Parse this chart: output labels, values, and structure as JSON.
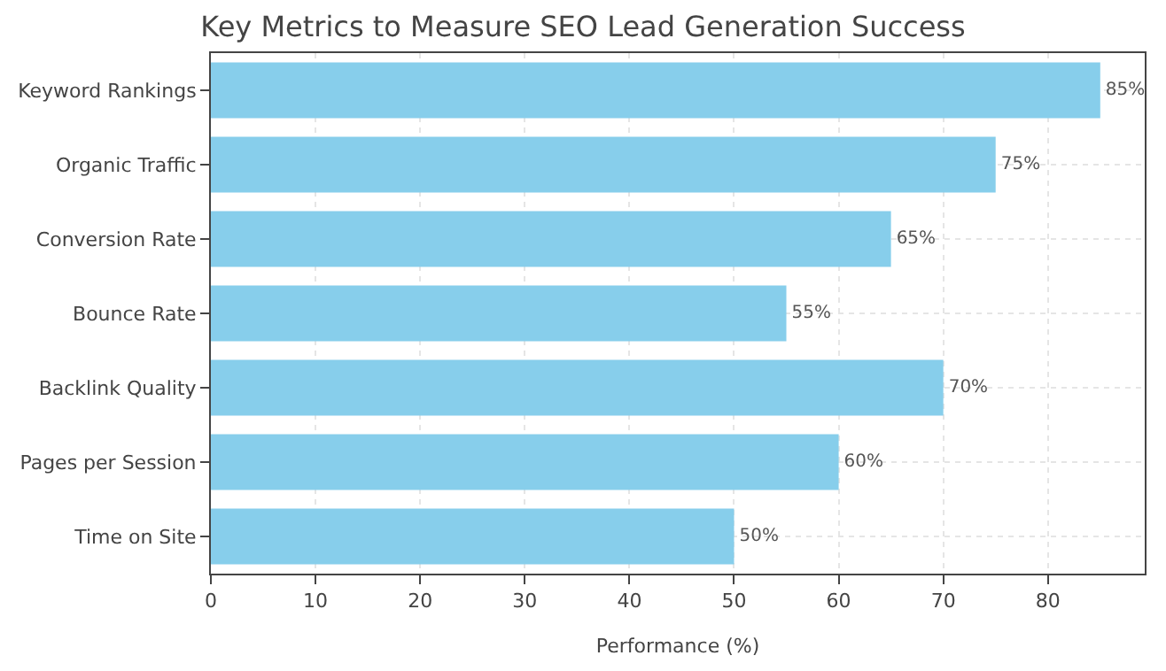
{
  "chart_data": {
    "type": "bar",
    "orientation": "horizontal",
    "title": "Key Metrics to Measure SEO Lead Generation Success",
    "xlabel": "Performance (%)",
    "categories": [
      "Keyword Rankings",
      "Organic Traffic",
      "Conversion Rate",
      "Bounce Rate",
      "Backlink Quality",
      "Pages per Session",
      "Time on Site"
    ],
    "values": [
      85,
      75,
      65,
      55,
      70,
      60,
      50
    ],
    "value_labels": [
      "85%",
      "75%",
      "65%",
      "55%",
      "70%",
      "60%",
      "50%"
    ],
    "color": "#87ceeb",
    "xlim": [
      0,
      89.25
    ],
    "xticks": [
      0,
      10,
      20,
      30,
      40,
      50,
      60,
      70,
      80
    ],
    "grid": true
  }
}
